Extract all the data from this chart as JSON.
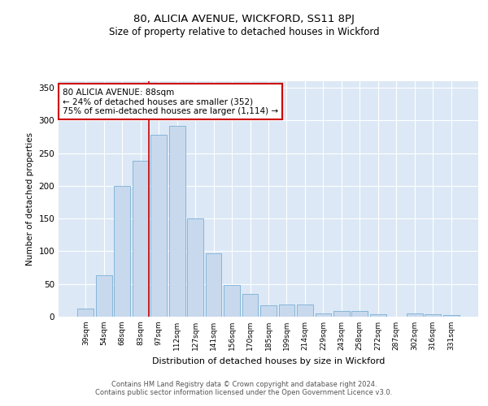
{
  "title": "80, ALICIA AVENUE, WICKFORD, SS11 8PJ",
  "subtitle": "Size of property relative to detached houses in Wickford",
  "xlabel": "Distribution of detached houses by size in Wickford",
  "ylabel": "Number of detached properties",
  "categories": [
    "39sqm",
    "54sqm",
    "68sqm",
    "83sqm",
    "97sqm",
    "112sqm",
    "127sqm",
    "141sqm",
    "156sqm",
    "170sqm",
    "185sqm",
    "199sqm",
    "214sqm",
    "229sqm",
    "243sqm",
    "258sqm",
    "272sqm",
    "287sqm",
    "302sqm",
    "316sqm",
    "331sqm"
  ],
  "values": [
    13,
    63,
    200,
    238,
    278,
    292,
    150,
    97,
    48,
    35,
    18,
    19,
    19,
    5,
    9,
    9,
    4,
    0,
    5,
    4,
    3
  ],
  "bar_color": "#c8d9ee",
  "bar_edge_color": "#7aafd4",
  "vline_x_index": 3,
  "vline_color": "#cc0000",
  "annotation_line1": "80 ALICIA AVENUE: 88sqm",
  "annotation_line2": "← 24% of detached houses are smaller (352)",
  "annotation_line3": "75% of semi-detached houses are larger (1,114) →",
  "annotation_box_edge_color": "#cc0000",
  "ylim": [
    0,
    360
  ],
  "yticks": [
    0,
    50,
    100,
    150,
    200,
    250,
    300,
    350
  ],
  "bg_color": "#dce8f5",
  "footer_line1": "Contains HM Land Registry data © Crown copyright and database right 2024.",
  "footer_line2": "Contains public sector information licensed under the Open Government Licence v3.0."
}
